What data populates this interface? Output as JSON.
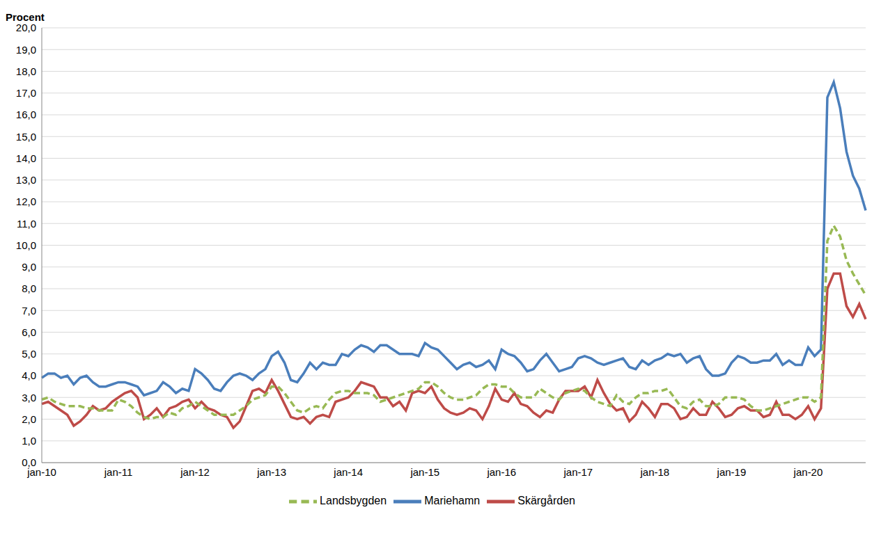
{
  "chart_data": {
    "type": "line",
    "y_label": "Procent",
    "categories": [
      "jan-10",
      null,
      null,
      null,
      null,
      null,
      null,
      null,
      null,
      null,
      null,
      null,
      "jan-11",
      null,
      null,
      null,
      null,
      null,
      null,
      null,
      null,
      null,
      null,
      null,
      "jan-12",
      null,
      null,
      null,
      null,
      null,
      null,
      null,
      null,
      null,
      null,
      null,
      "jan-13",
      null,
      null,
      null,
      null,
      null,
      null,
      null,
      null,
      null,
      null,
      null,
      "jan-14",
      null,
      null,
      null,
      null,
      null,
      null,
      null,
      null,
      null,
      null,
      null,
      "jan-15",
      null,
      null,
      null,
      null,
      null,
      null,
      null,
      null,
      null,
      null,
      null,
      "jan-16",
      null,
      null,
      null,
      null,
      null,
      null,
      null,
      null,
      null,
      null,
      null,
      "jan-17",
      null,
      null,
      null,
      null,
      null,
      null,
      null,
      null,
      null,
      null,
      null,
      "jan-18",
      null,
      null,
      null,
      null,
      null,
      null,
      null,
      null,
      null,
      null,
      null,
      "jan-19",
      null,
      null,
      null,
      null,
      null,
      null,
      null,
      null,
      null,
      null,
      null,
      "jan-20",
      null,
      null,
      null,
      null,
      null,
      null,
      null,
      null,
      null
    ],
    "series": [
      {
        "name": "Mariehamn",
        "color": "#4a7ebb",
        "line_style": "solid",
        "values": [
          3.9,
          4.1,
          4.1,
          3.9,
          4.0,
          3.6,
          3.9,
          4.0,
          3.7,
          3.5,
          3.5,
          3.6,
          3.7,
          3.7,
          3.6,
          3.5,
          3.1,
          3.2,
          3.3,
          3.7,
          3.5,
          3.2,
          3.4,
          3.3,
          4.3,
          4.1,
          3.8,
          3.4,
          3.3,
          3.7,
          4.0,
          4.1,
          4.0,
          3.8,
          4.1,
          4.3,
          4.9,
          5.1,
          4.6,
          3.8,
          3.7,
          4.1,
          4.6,
          4.3,
          4.6,
          4.5,
          4.5,
          5.0,
          4.9,
          5.2,
          5.4,
          5.3,
          5.1,
          5.4,
          5.4,
          5.2,
          5.0,
          5.0,
          5.0,
          4.9,
          5.5,
          5.3,
          5.2,
          4.9,
          4.6,
          4.3,
          4.5,
          4.6,
          4.4,
          4.5,
          4.7,
          4.3,
          5.2,
          5.0,
          4.9,
          4.6,
          4.2,
          4.3,
          4.7,
          5.0,
          4.6,
          4.2,
          4.3,
          4.4,
          4.8,
          4.9,
          4.8,
          4.6,
          4.5,
          4.6,
          4.7,
          4.8,
          4.4,
          4.3,
          4.7,
          4.5,
          4.7,
          4.8,
          5.0,
          4.9,
          5.0,
          4.6,
          4.8,
          4.9,
          4.3,
          4.0,
          4.0,
          4.1,
          4.6,
          4.9,
          4.8,
          4.6,
          4.6,
          4.7,
          4.7,
          5.0,
          4.5,
          4.7,
          4.5,
          4.5,
          5.3,
          4.9,
          5.2,
          16.8,
          17.5,
          16.3,
          14.3,
          13.2,
          12.6,
          11.6
        ]
      },
      {
        "name": "Skärgården",
        "color": "#be4b48",
        "line_style": "solid",
        "values": [
          2.7,
          2.8,
          2.6,
          2.4,
          2.2,
          1.7,
          1.9,
          2.2,
          2.6,
          2.4,
          2.5,
          2.8,
          3.0,
          3.2,
          3.3,
          3.0,
          2.0,
          2.2,
          2.5,
          2.1,
          2.5,
          2.6,
          2.8,
          2.9,
          2.5,
          2.8,
          2.5,
          2.4,
          2.2,
          2.1,
          1.6,
          1.9,
          2.6,
          3.3,
          3.4,
          3.2,
          3.8,
          3.3,
          2.7,
          2.1,
          2.0,
          2.1,
          1.8,
          2.1,
          2.2,
          2.1,
          2.8,
          2.9,
          3.0,
          3.3,
          3.7,
          3.6,
          3.5,
          3.0,
          3.0,
          2.6,
          2.8,
          2.4,
          3.2,
          3.3,
          3.2,
          3.5,
          2.9,
          2.5,
          2.3,
          2.2,
          2.3,
          2.5,
          2.4,
          2.0,
          2.6,
          3.4,
          2.9,
          2.8,
          3.2,
          2.7,
          2.6,
          2.3,
          2.1,
          2.4,
          2.3,
          2.9,
          3.3,
          3.3,
          3.3,
          3.5,
          3.0,
          3.8,
          3.2,
          2.7,
          2.4,
          2.5,
          1.9,
          2.2,
          2.8,
          2.5,
          2.1,
          2.7,
          2.7,
          2.5,
          2.0,
          2.1,
          2.5,
          2.2,
          2.2,
          2.8,
          2.5,
          2.1,
          2.2,
          2.5,
          2.6,
          2.4,
          2.4,
          2.1,
          2.2,
          2.8,
          2.2,
          2.2,
          2.0,
          2.2,
          2.6,
          2.0,
          2.5,
          8.0,
          8.7,
          8.7,
          7.2,
          6.7,
          7.3,
          6.6
        ]
      },
      {
        "name": "Landsbygden",
        "color": "#98b954",
        "line_style": "dashed",
        "values": [
          2.9,
          3.0,
          2.8,
          2.7,
          2.6,
          2.6,
          2.6,
          2.5,
          2.5,
          2.4,
          2.4,
          2.4,
          2.9,
          2.8,
          2.6,
          2.3,
          2.1,
          2.0,
          2.1,
          2.1,
          2.3,
          2.2,
          2.5,
          2.6,
          2.8,
          2.6,
          2.4,
          2.2,
          2.2,
          2.2,
          2.2,
          2.4,
          2.6,
          2.9,
          3.0,
          3.1,
          3.5,
          3.5,
          3.2,
          2.8,
          2.4,
          2.3,
          2.5,
          2.6,
          2.5,
          2.9,
          3.2,
          3.3,
          3.3,
          3.2,
          3.2,
          3.2,
          3.1,
          2.8,
          2.9,
          3.0,
          3.1,
          3.2,
          3.3,
          3.4,
          3.7,
          3.7,
          3.5,
          3.2,
          3.0,
          2.9,
          2.9,
          3.0,
          3.1,
          3.4,
          3.6,
          3.6,
          3.5,
          3.5,
          3.2,
          3.0,
          3.0,
          3.0,
          3.4,
          3.2,
          3.0,
          2.9,
          3.2,
          3.3,
          3.4,
          3.3,
          3.0,
          2.8,
          2.7,
          2.6,
          3.1,
          2.8,
          2.7,
          3.0,
          3.2,
          3.2,
          3.3,
          3.3,
          3.4,
          3.0,
          2.6,
          2.5,
          2.8,
          2.9,
          2.6,
          2.6,
          2.7,
          3.0,
          3.0,
          3.0,
          2.9,
          2.6,
          2.4,
          2.4,
          2.5,
          2.6,
          2.7,
          2.8,
          2.9,
          3.0,
          3.0,
          2.8,
          3.0,
          10.2,
          10.9,
          10.4,
          9.3,
          8.7,
          8.2,
          7.7
        ]
      }
    ],
    "ylim": [
      0,
      20
    ],
    "yticks": [
      {
        "value": 0,
        "label": "0,0"
      },
      {
        "value": 1,
        "label": "1,0"
      },
      {
        "value": 2,
        "label": "2,0"
      },
      {
        "value": 3,
        "label": "3,0"
      },
      {
        "value": 4,
        "label": "4,0"
      },
      {
        "value": 5,
        "label": "5,0"
      },
      {
        "value": 6,
        "label": "6,0"
      },
      {
        "value": 7,
        "label": "7,0"
      },
      {
        "value": 8,
        "label": "8,0"
      },
      {
        "value": 9,
        "label": "9,0"
      },
      {
        "value": 10,
        "label": "10,0"
      },
      {
        "value": 11,
        "label": "11,0"
      },
      {
        "value": 12,
        "label": "12,0"
      },
      {
        "value": 13,
        "label": "13,0"
      },
      {
        "value": 14,
        "label": "14,0"
      },
      {
        "value": 15,
        "label": "15,0"
      },
      {
        "value": 16,
        "label": "16,0"
      },
      {
        "value": 17,
        "label": "17,0"
      },
      {
        "value": 18,
        "label": "18,0"
      },
      {
        "value": 19,
        "label": "19,0"
      },
      {
        "value": 20,
        "label": "20,0"
      }
    ],
    "grid": true,
    "legend": "bottom"
  }
}
